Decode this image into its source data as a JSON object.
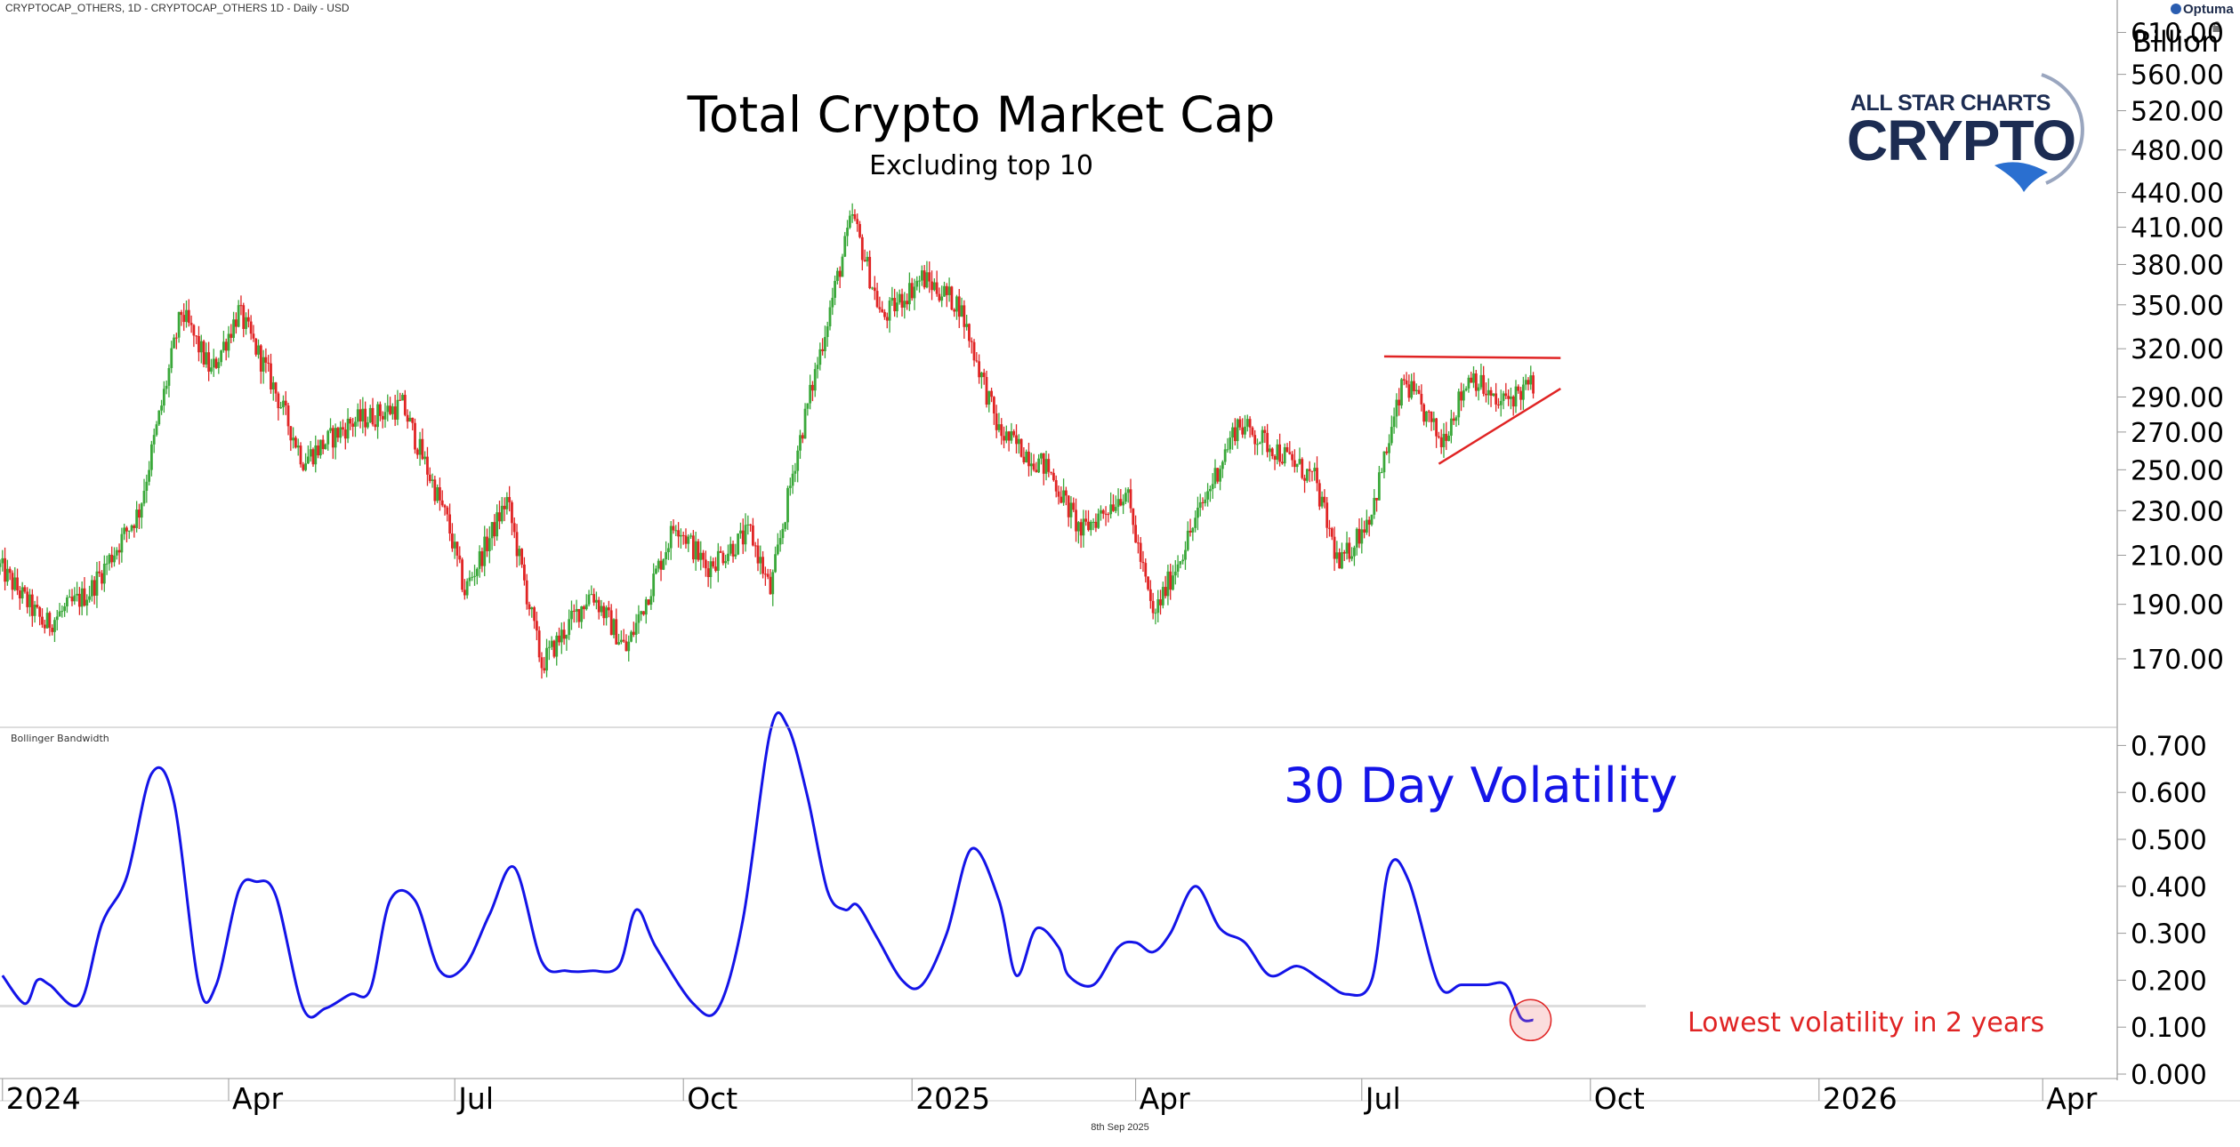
{
  "header": {
    "source_text": "CRYPTOCAP_OTHERS, 1D - CRYPTOCAP_OTHERS  1D - Daily - USD"
  },
  "footer": {
    "date_text": "8th Sep 2025"
  },
  "branding": {
    "optuma": "Optuma",
    "logo_line1": "ALL STAR CHARTS",
    "logo_line2": "CRYPTO",
    "logo_color": "#1c2c52",
    "whale_color": "#2a6fd0"
  },
  "colors": {
    "up": "#3aa83a",
    "down": "#e02424",
    "volatility_line": "#1414e8",
    "trendline": "#e02424",
    "annotation": "#e02424"
  },
  "chart_data": [
    {
      "type": "candlestick",
      "title": "Total Crypto Market Cap",
      "subtitle": "Excluding top 10",
      "yaxis_unit": "Billion",
      "yscale": "log",
      "ylim": [
        150,
        640
      ],
      "yticks": [
        "610.00",
        "560.00",
        "520.00",
        "480.00",
        "440.00",
        "410.00",
        "380.00",
        "350.00",
        "320.00",
        "290.00",
        "270.00",
        "250.00",
        "230.00",
        "210.00",
        "190.00",
        "170.00"
      ],
      "ytick_values": [
        610,
        560,
        520,
        480,
        440,
        410,
        380,
        350,
        320,
        290,
        270,
        250,
        230,
        210,
        190,
        170
      ],
      "x_tick_labels": [
        "2024",
        "Apr",
        "Jul",
        "Oct",
        "2025",
        "Apr",
        "Jul",
        "Oct",
        "2026",
        "Apr"
      ],
      "x_tick_dates": [
        "2024-01-01",
        "2024-04-01",
        "2024-07-01",
        "2024-10-01",
        "2025-01-01",
        "2025-04-01",
        "2025-07-01",
        "2025-10-01",
        "2026-01-01",
        "2026-04-01"
      ],
      "x_range": [
        "2023-12-31",
        "2026-05-01"
      ],
      "price_path": [
        [
          "2023-12-31",
          205
        ],
        [
          "2024-01-18",
          182
        ],
        [
          "2024-02-05",
          195
        ],
        [
          "2024-02-25",
          230
        ],
        [
          "2024-03-13",
          345
        ],
        [
          "2024-03-25",
          305
        ],
        [
          "2024-04-05",
          345
        ],
        [
          "2024-04-18",
          300
        ],
        [
          "2024-05-01",
          255
        ],
        [
          "2024-05-20",
          275
        ],
        [
          "2024-06-10",
          285
        ],
        [
          "2024-06-28",
          225
        ],
        [
          "2024-07-05",
          195
        ],
        [
          "2024-07-22",
          235
        ],
        [
          "2024-08-05",
          168
        ],
        [
          "2024-08-25",
          195
        ],
        [
          "2024-09-08",
          173
        ],
        [
          "2024-09-28",
          225
        ],
        [
          "2024-10-10",
          205
        ],
        [
          "2024-10-28",
          220
        ],
        [
          "2024-11-05",
          195
        ],
        [
          "2024-11-15",
          255
        ],
        [
          "2024-11-28",
          340
        ],
        [
          "2024-12-08",
          420
        ],
        [
          "2024-12-20",
          340
        ],
        [
          "2025-01-05",
          370
        ],
        [
          "2025-01-20",
          350
        ],
        [
          "2025-02-05",
          270
        ],
        [
          "2025-02-25",
          250
        ],
        [
          "2025-03-10",
          220
        ],
        [
          "2025-03-28",
          240
        ],
        [
          "2025-04-08",
          185
        ],
        [
          "2025-04-25",
          225
        ],
        [
          "2025-05-12",
          275
        ],
        [
          "2025-05-28",
          260
        ],
        [
          "2025-06-12",
          245
        ],
        [
          "2025-06-22",
          205
        ],
        [
          "2025-07-05",
          230
        ],
        [
          "2025-07-18",
          300
        ],
        [
          "2025-08-02",
          265
        ],
        [
          "2025-08-14",
          305
        ],
        [
          "2025-08-24",
          285
        ],
        [
          "2025-09-08",
          298
        ]
      ],
      "trendlines": [
        {
          "kind": "horizontal",
          "from": [
            "2025-07-10",
            315
          ],
          "to": [
            "2025-09-19",
            314
          ]
        },
        {
          "kind": "rising",
          "from": [
            "2025-08-01",
            253
          ],
          "to": [
            "2025-09-19",
            295
          ]
        }
      ]
    },
    {
      "type": "line",
      "title": "Bollinger Bandwidth",
      "annotation_main": "30 Day Volatility",
      "annotation_low": "Lowest volatility in 2 years",
      "ylim": [
        0,
        0.75
      ],
      "yticks": [
        "0.700",
        "0.600",
        "0.500",
        "0.400",
        "0.300",
        "0.200",
        "0.100",
        "0.000"
      ],
      "ytick_values": [
        0.7,
        0.6,
        0.5,
        0.4,
        0.3,
        0.2,
        0.1,
        0.0
      ],
      "reference_level": 0.145,
      "series": [
        {
          "x": [
            "2024-01-01",
            "2024-01-10",
            "2024-01-15",
            "2024-01-20",
            "2024-02-01",
            "2024-02-10",
            "2024-02-20",
            "2024-03-01",
            "2024-03-10",
            "2024-03-20",
            "2024-03-27",
            "2024-04-05",
            "2024-04-12",
            "2024-04-20",
            "2024-05-01",
            "2024-05-10",
            "2024-05-20",
            "2024-05-28",
            "2024-06-05",
            "2024-06-15",
            "2024-06-25",
            "2024-07-05",
            "2024-07-15",
            "2024-07-25",
            "2024-08-05",
            "2024-08-15",
            "2024-08-25",
            "2024-09-05",
            "2024-09-12",
            "2024-09-20",
            "2024-10-05",
            "2024-10-15",
            "2024-10-25",
            "2024-11-05",
            "2024-11-12",
            "2024-11-20",
            "2024-11-28",
            "2024-12-05",
            "2024-12-10",
            "2024-12-18",
            "2024-12-28",
            "2025-01-05",
            "2025-01-15",
            "2025-01-25",
            "2025-02-05",
            "2025-02-12",
            "2025-02-20",
            "2025-03-01",
            "2025-03-05",
            "2025-03-15",
            "2025-03-25",
            "2025-04-01",
            "2025-04-08",
            "2025-04-15",
            "2025-04-25",
            "2025-05-05",
            "2025-05-15",
            "2025-05-25",
            "2025-06-05",
            "2025-06-15",
            "2025-06-25",
            "2025-07-05",
            "2025-07-12",
            "2025-07-20",
            "2025-08-01",
            "2025-08-10",
            "2025-08-20",
            "2025-08-28",
            "2025-09-03",
            "2025-09-08"
          ],
          "y": [
            0.21,
            0.15,
            0.2,
            0.19,
            0.15,
            0.32,
            0.42,
            0.64,
            0.58,
            0.19,
            0.19,
            0.39,
            0.41,
            0.38,
            0.14,
            0.14,
            0.17,
            0.18,
            0.37,
            0.37,
            0.22,
            0.23,
            0.34,
            0.44,
            0.24,
            0.22,
            0.22,
            0.23,
            0.35,
            0.27,
            0.15,
            0.14,
            0.33,
            0.73,
            0.74,
            0.59,
            0.39,
            0.35,
            0.36,
            0.29,
            0.2,
            0.19,
            0.3,
            0.48,
            0.37,
            0.21,
            0.31,
            0.27,
            0.21,
            0.19,
            0.27,
            0.28,
            0.26,
            0.3,
            0.4,
            0.31,
            0.28,
            0.21,
            0.23,
            0.2,
            0.17,
            0.2,
            0.44,
            0.41,
            0.19,
            0.19,
            0.19,
            0.19,
            0.12,
            0.115
          ]
        }
      ]
    }
  ]
}
